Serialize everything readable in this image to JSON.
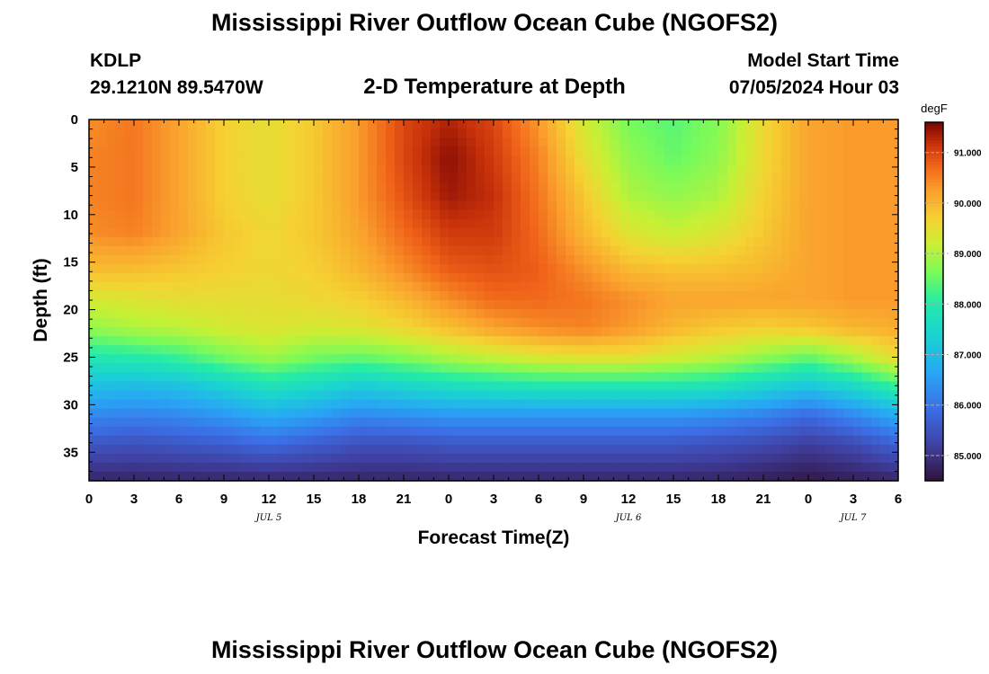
{
  "page": {
    "title": "Mississippi River Outflow Ocean Cube (NGOFS2)",
    "station": {
      "id": "KDLP",
      "coords": "29.1210N  89.5470W"
    },
    "plot_title": "2-D Temperature at Depth",
    "model_start": {
      "label": "Model Start Time",
      "value": "07/05/2024 Hour 03"
    },
    "footer_title": "Mississippi River Outflow Ocean Cube (NGOFS2)"
  },
  "chart_data": {
    "type": "heatmap",
    "title": "2-D Temperature at Depth",
    "xlabel": "Forecast Time(Z)",
    "ylabel": "Depth (ft)",
    "xlim": [
      0,
      54
    ],
    "ylim": [
      0,
      38
    ],
    "y_inverted": true,
    "x_ticks": [
      {
        "hours": 0,
        "label": "0"
      },
      {
        "hours": 3,
        "label": "3"
      },
      {
        "hours": 6,
        "label": "6"
      },
      {
        "hours": 9,
        "label": "9"
      },
      {
        "hours": 12,
        "label": "12"
      },
      {
        "hours": 15,
        "label": "15"
      },
      {
        "hours": 18,
        "label": "18"
      },
      {
        "hours": 21,
        "label": "21"
      },
      {
        "hours": 24,
        "label": "0"
      },
      {
        "hours": 27,
        "label": "3"
      },
      {
        "hours": 30,
        "label": "6"
      },
      {
        "hours": 33,
        "label": "9"
      },
      {
        "hours": 36,
        "label": "12"
      },
      {
        "hours": 39,
        "label": "15"
      },
      {
        "hours": 42,
        "label": "18"
      },
      {
        "hours": 45,
        "label": "21"
      },
      {
        "hours": 48,
        "label": "0"
      },
      {
        "hours": 51,
        "label": "3"
      },
      {
        "hours": 54,
        "label": "6"
      }
    ],
    "date_labels": [
      {
        "hours": 12,
        "label": "JUL 5"
      },
      {
        "hours": 36,
        "label": "JUL 6"
      },
      {
        "hours": 51,
        "label": "JUL 7"
      }
    ],
    "y_ticks": [
      0,
      5,
      10,
      15,
      20,
      25,
      30,
      35
    ],
    "colorbar": {
      "unit": "degF",
      "min": 84.5,
      "max": 91.6,
      "ticks": [
        {
          "value": 85.0,
          "label": "85.000"
        },
        {
          "value": 86.0,
          "label": "86.000"
        },
        {
          "value": 87.0,
          "label": "87.000"
        },
        {
          "value": 88.0,
          "label": "88.000"
        },
        {
          "value": 89.0,
          "label": "89.000"
        },
        {
          "value": 90.0,
          "label": "90.000"
        },
        {
          "value": 91.0,
          "label": "91.000"
        }
      ],
      "colormap": "turbo"
    },
    "depth_levels": [
      0,
      4,
      8,
      12,
      16,
      19,
      22,
      25,
      28,
      31,
      34,
      38
    ],
    "time_points": [
      0,
      3,
      6,
      9,
      12,
      15,
      18,
      21,
      24,
      27,
      30,
      33,
      36,
      39,
      42,
      45,
      48,
      51,
      54
    ],
    "temperature": [
      [
        90.4,
        90.6,
        90.2,
        89.7,
        89.5,
        89.8,
        90.3,
        91.0,
        91.3,
        91.0,
        90.3,
        89.3,
        88.6,
        88.4,
        88.7,
        89.6,
        90.2,
        90.3,
        90.3
      ],
      [
        90.5,
        90.6,
        90.2,
        89.7,
        89.5,
        89.8,
        90.3,
        91.0,
        91.5,
        91.1,
        90.5,
        89.5,
        88.8,
        88.5,
        88.8,
        89.6,
        90.2,
        90.3,
        90.3
      ],
      [
        90.5,
        90.6,
        90.2,
        89.7,
        89.5,
        89.8,
        90.3,
        90.9,
        91.4,
        91.2,
        90.6,
        89.8,
        89.0,
        88.8,
        89.0,
        89.7,
        90.2,
        90.3,
        90.3
      ],
      [
        90.4,
        90.5,
        90.2,
        89.8,
        89.6,
        89.8,
        90.2,
        90.7,
        91.1,
        91.1,
        90.7,
        90.0,
        89.4,
        89.2,
        89.4,
        89.8,
        90.2,
        90.3,
        90.3
      ],
      [
        89.9,
        89.9,
        89.8,
        89.7,
        89.6,
        89.7,
        90.0,
        90.4,
        90.8,
        90.9,
        90.8,
        90.4,
        90.0,
        89.9,
        89.9,
        90.0,
        90.2,
        90.3,
        90.3
      ],
      [
        89.3,
        89.4,
        89.5,
        89.5,
        89.5,
        89.6,
        89.7,
        90.0,
        90.4,
        90.7,
        90.7,
        90.6,
        90.4,
        90.2,
        90.2,
        90.2,
        90.2,
        90.3,
        90.3
      ],
      [
        88.8,
        89.0,
        89.1,
        89.3,
        89.4,
        89.3,
        89.4,
        89.6,
        89.9,
        90.2,
        90.4,
        90.5,
        90.3,
        90.0,
        89.8,
        89.7,
        89.8,
        90.0,
        90.1
      ],
      [
        87.9,
        88.0,
        88.2,
        88.6,
        88.9,
        88.6,
        88.5,
        88.7,
        89.0,
        89.2,
        89.4,
        89.5,
        89.5,
        89.3,
        89.1,
        88.8,
        88.5,
        89.0,
        89.6
      ],
      [
        87.1,
        87.0,
        87.1,
        87.4,
        87.8,
        87.6,
        87.3,
        87.5,
        87.7,
        87.8,
        87.9,
        87.9,
        87.9,
        87.9,
        87.8,
        87.5,
        87.2,
        87.6,
        88.2
      ],
      [
        86.3,
        86.2,
        86.3,
        86.5,
        86.8,
        86.6,
        86.3,
        86.4,
        86.5,
        86.5,
        86.5,
        86.5,
        86.5,
        86.5,
        86.4,
        86.2,
        85.9,
        86.3,
        86.8
      ],
      [
        85.6,
        85.5,
        85.6,
        85.7,
        85.9,
        85.7,
        85.5,
        85.5,
        85.6,
        85.6,
        85.6,
        85.6,
        85.6,
        85.6,
        85.5,
        85.4,
        85.2,
        85.4,
        85.8
      ],
      [
        84.8,
        84.8,
        84.8,
        84.8,
        84.8,
        84.8,
        84.8,
        84.8,
        84.8,
        84.8,
        84.8,
        84.8,
        84.8,
        84.8,
        84.8,
        84.7,
        84.6,
        84.7,
        84.8
      ]
    ]
  }
}
